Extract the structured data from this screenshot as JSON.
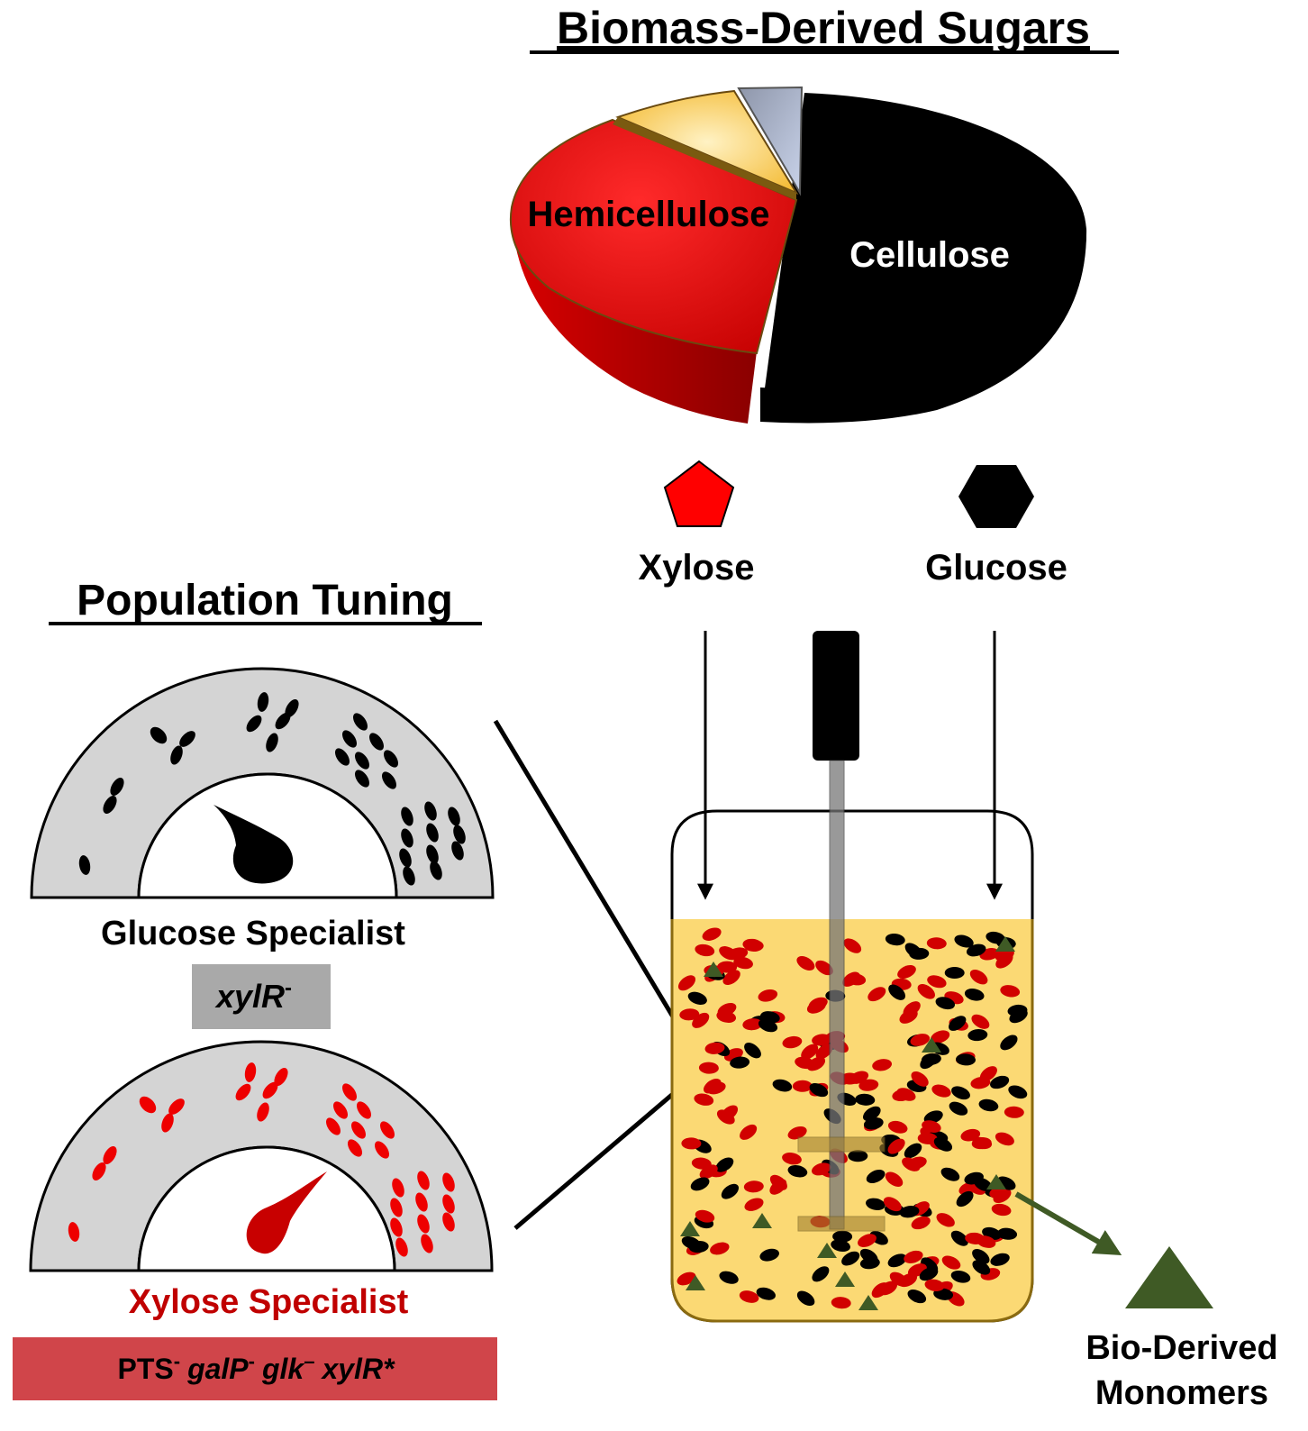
{
  "title": "Biomass-Derived Sugars",
  "pie": {
    "slices": [
      {
        "label": "Cellulose",
        "color": "#000000"
      },
      {
        "label": "Hemicellulose",
        "color": "#e00000"
      },
      {
        "label": "",
        "color": "#f6c23e"
      },
      {
        "label": "",
        "color": "#b6c2d8"
      }
    ]
  },
  "sugars": {
    "xylose": {
      "label": "Xylose",
      "shape": "pentagon",
      "color": "#ff0000"
    },
    "glucose": {
      "label": "Glucose",
      "shape": "hexagon",
      "color": "#000000"
    }
  },
  "population": {
    "title": "Population Tuning",
    "glucose_gauge": {
      "label": "Glucose Specialist",
      "genotype": "xylR",
      "genotype_sup": "-",
      "cell_color": "#000000"
    },
    "xylose_gauge": {
      "label": "Xylose Specialist",
      "genotype_parts": [
        {
          "text": "PTS",
          "sup": "-",
          "italic": false
        },
        {
          "text": "galP",
          "sup": "-",
          "italic": true
        },
        {
          "text": "glk",
          "sup": "–",
          "italic": true
        },
        {
          "text": "xylR*",
          "sup": "",
          "italic": true
        }
      ],
      "cell_color": "#d40000"
    }
  },
  "product": {
    "line1": "Bio-Derived",
    "line2": "Monomers",
    "color": "#3f5a25"
  },
  "colors": {
    "medium": "#fbd974",
    "gauge_gray": "#d4d4d4",
    "glucose_cell": "#000000",
    "xylose_cell": "#d10000",
    "product": "#3f5a25"
  }
}
